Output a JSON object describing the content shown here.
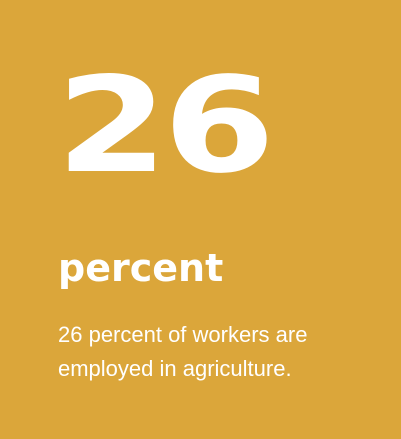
{
  "stat": {
    "number": "26",
    "unit": "percent",
    "description": "26 percent of workers are employed in agriculture."
  },
  "colors": {
    "background": "#DBA63A",
    "text": "#FFFFFF"
  }
}
